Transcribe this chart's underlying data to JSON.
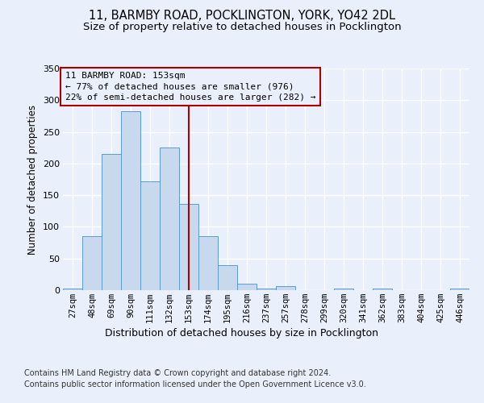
{
  "title_line1": "11, BARMBY ROAD, POCKLINGTON, YORK, YO42 2DL",
  "title_line2": "Size of property relative to detached houses in Pocklington",
  "xlabel": "Distribution of detached houses by size in Pocklington",
  "ylabel": "Number of detached properties",
  "categories": [
    "27sqm",
    "48sqm",
    "69sqm",
    "90sqm",
    "111sqm",
    "132sqm",
    "153sqm",
    "174sqm",
    "195sqm",
    "216sqm",
    "237sqm",
    "257sqm",
    "278sqm",
    "299sqm",
    "320sqm",
    "341sqm",
    "362sqm",
    "383sqm",
    "404sqm",
    "425sqm",
    "446sqm"
  ],
  "values": [
    2,
    85,
    215,
    283,
    172,
    225,
    136,
    85,
    40,
    10,
    2,
    6,
    0,
    0,
    2,
    0,
    3,
    0,
    0,
    0,
    2
  ],
  "bar_color": "#c9d9ed",
  "bar_edge_color": "#5b9bd5",
  "highlight_index": 6,
  "highlight_line_color": "#aa0000",
  "annotation_box_color": "#aa0000",
  "annotation_text_line1": "11 BARMBY ROAD: 153sqm",
  "annotation_text_line2": "← 77% of detached houses are smaller (976)",
  "annotation_text_line3": "22% of semi-detached houses are larger (282) →",
  "ylim": [
    0,
    350
  ],
  "yticks": [
    0,
    50,
    100,
    150,
    200,
    250,
    300,
    350
  ],
  "footer_line1": "Contains HM Land Registry data © Crown copyright and database right 2024.",
  "footer_line2": "Contains public sector information licensed under the Open Government Licence v3.0.",
  "bg_color": "#eaf0fb",
  "plot_bg_color": "#eaf0fb",
  "grid_color": "#ffffff",
  "title_fontsize": 10.5,
  "subtitle_fontsize": 9.5,
  "annotation_fontsize": 8,
  "footer_fontsize": 7
}
